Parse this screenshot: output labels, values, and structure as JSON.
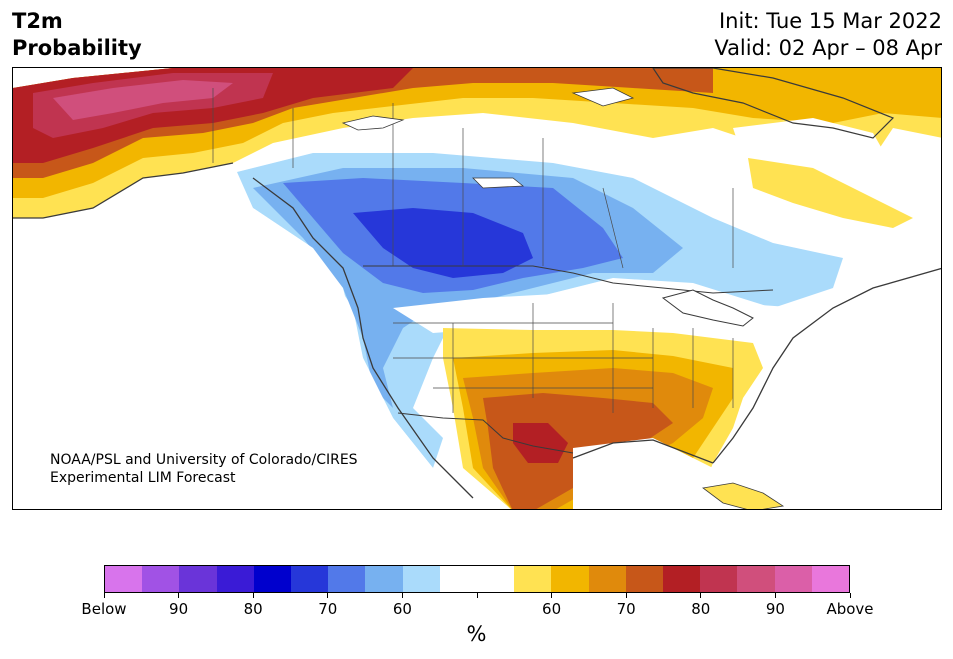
{
  "header": {
    "title_line1": "T2m",
    "title_line2": "Probability",
    "init": "Init: Tue 15 Mar 2022",
    "valid": "Valid: 02 Apr – 08 Apr"
  },
  "map": {
    "credit_line1": "NOAA/PSL and University of Colorado/CIRES",
    "credit_line2": "Experimental LIM Forecast"
  },
  "colorbar": {
    "unit": "%",
    "colors": [
      "#d874ec",
      "#a152e5",
      "#6a34d9",
      "#3a1bd6",
      "#0000cd",
      "#2637d9",
      "#5279e9",
      "#77b1f0",
      "#aadbfb",
      "#ffffff",
      "#ffffff",
      "#ffe252",
      "#f2b600",
      "#e08a0c",
      "#c75719",
      "#b31f24",
      "#c03450",
      "#d04f7c",
      "#db5fa8",
      "#e977dc"
    ],
    "tick_labels": [
      "Below",
      "90",
      "80",
      "70",
      "60",
      "",
      "60",
      "70",
      "80",
      "90",
      "Above"
    ]
  }
}
